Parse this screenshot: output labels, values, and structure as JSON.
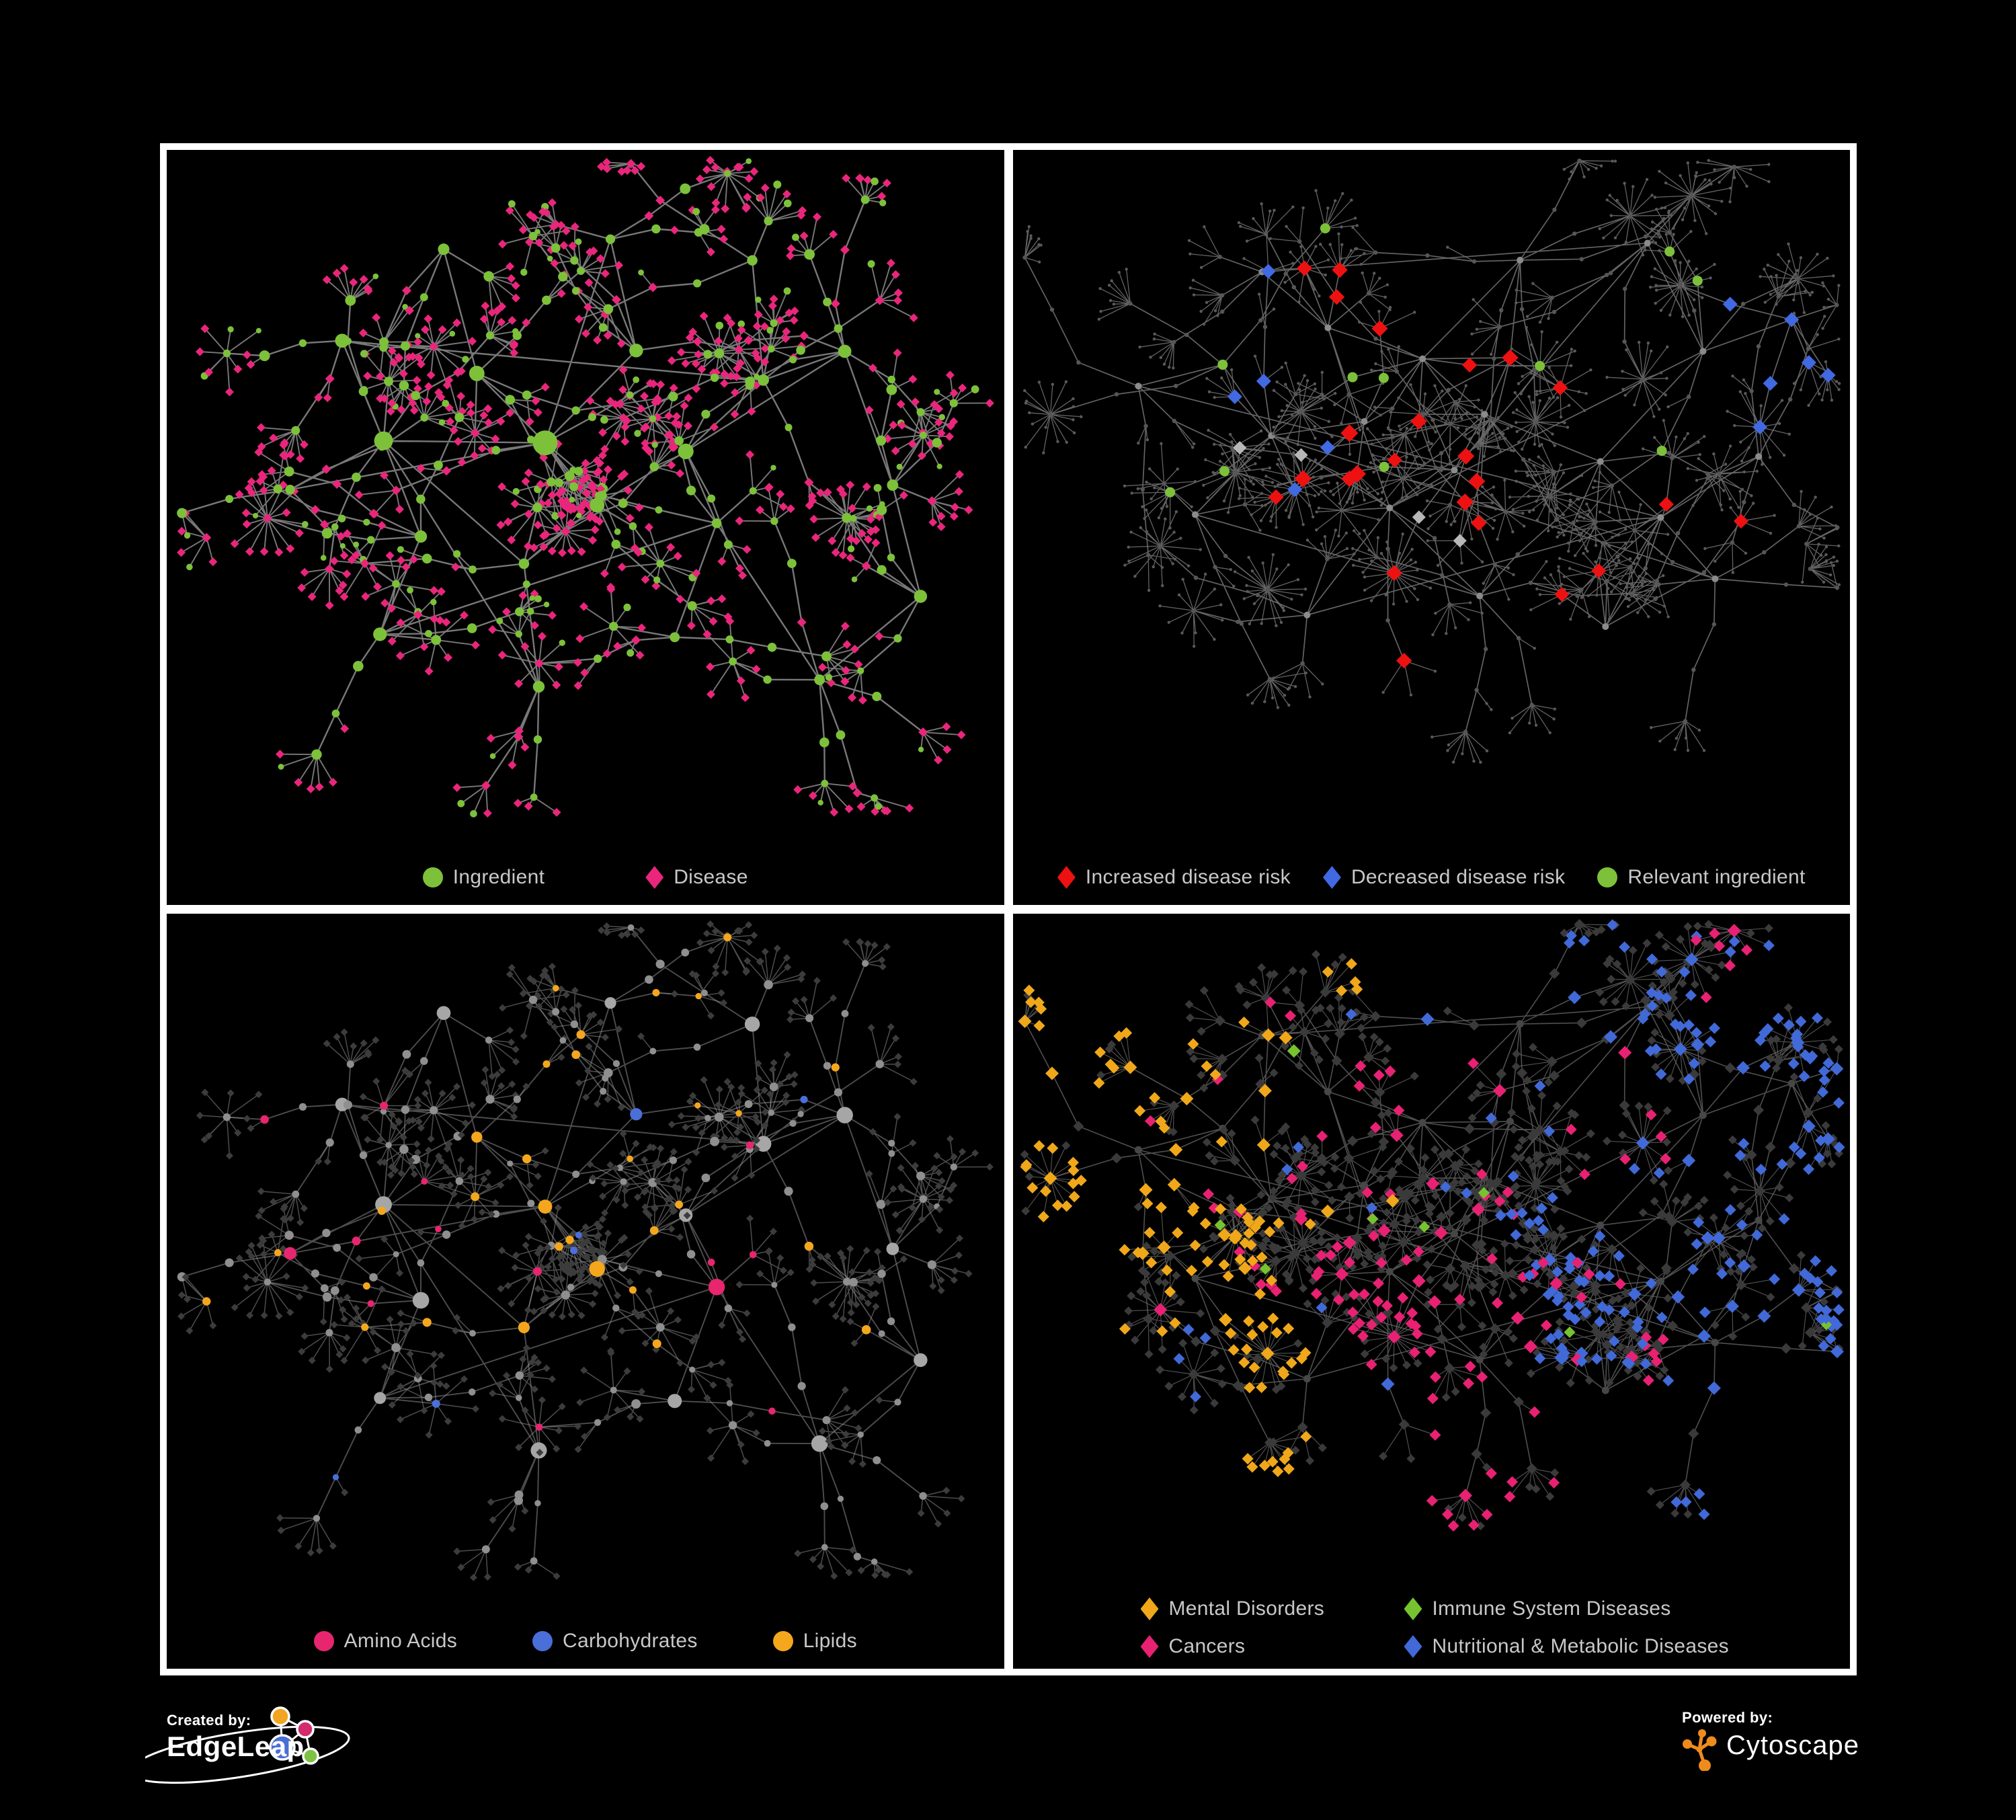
{
  "figure": {
    "background": "#000000",
    "frame_color": "#ffffff",
    "legend_text_color": "#c8c8c8"
  },
  "panels": [
    {
      "id": "ingredient-disease",
      "position": "top-left",
      "legend": [
        {
          "label": "Ingredient",
          "shape": "circle",
          "color": "#7dc13a"
        },
        {
          "label": "Disease",
          "shape": "diamond",
          "color": "#e9267b"
        }
      ],
      "network": {
        "type": "network",
        "layout": "A",
        "seed": 11,
        "color_seed": 101
      },
      "palette": {
        "ingredient": "#7dc13a",
        "disease": "#e9267b",
        "edge": "#7e7e7e"
      }
    },
    {
      "id": "disease-risk",
      "position": "top-right",
      "legend": [
        {
          "label": "Increased disease risk",
          "shape": "diamond",
          "color": "#ee1111"
        },
        {
          "label": "Decreased disease risk",
          "shape": "diamond",
          "color": "#4169e1"
        },
        {
          "label": "Relevant ingredient",
          "shape": "circle",
          "color": "#7dc13a"
        }
      ],
      "network": {
        "type": "network",
        "layout": "B",
        "seed": 47,
        "color_seed": 102
      },
      "palette": {
        "increased": "#ee1111",
        "decreased": "#4169e1",
        "relevant": "#7dc13a",
        "neutral": "#b8b8b8",
        "base": "#8b8b8b",
        "mid": "#565656",
        "leaf": "#5a5a5a",
        "edge": "#6e6e6e"
      }
    },
    {
      "id": "chemical-classes",
      "position": "bottom-left",
      "legend": [
        {
          "label": "Amino Acids",
          "shape": "circle",
          "color": "#e8256f"
        },
        {
          "label": "Carbohydrates",
          "shape": "circle",
          "color": "#4a6fd8"
        },
        {
          "label": "Lipids",
          "shape": "circle",
          "color": "#f4a71d"
        }
      ],
      "network": {
        "type": "network",
        "layout": "A",
        "seed": 11,
        "color_seed": 103
      },
      "palette": {
        "amino": "#e8256f",
        "carb": "#4a6fd8",
        "lipid": "#f4a71d",
        "node": "#8f8f8f",
        "hub": "#a6a6a6",
        "leaf": "#3c3c3c",
        "edge": "#9a9a9a"
      }
    },
    {
      "id": "disease-categories",
      "position": "bottom-right",
      "legend": [
        {
          "label": "Mental Disorders",
          "shape": "diamond",
          "color": "#f0a81a"
        },
        {
          "label": "Immune System Diseases",
          "shape": "diamond",
          "color": "#76c32f"
        },
        {
          "label": "Cancers",
          "shape": "diamond",
          "color": "#e82173"
        },
        {
          "label": "Nutritional & Metabolic Diseases",
          "shape": "diamond",
          "color": "#4169d8"
        }
      ],
      "network": {
        "type": "network",
        "layout": "B",
        "seed": 47,
        "color_seed": 104
      },
      "palette": {
        "mental": "#f0a81a",
        "immune": "#76c32f",
        "cancer": "#e82173",
        "metabolic": "#4169d8",
        "base": "#3a3a3a",
        "hub": "#474747",
        "edge": "#636363"
      }
    }
  ],
  "footer": {
    "created_by_label": "Created by:",
    "created_by_brand": "EdgeLeap",
    "powered_by_label": "Powered by:",
    "powered_by_brand": "Cytoscape",
    "edgeleap_logo_colors": {
      "orange": "#f2a51f",
      "pink": "#d42a6e",
      "blue": "#4a6fd4",
      "green": "#7dc242",
      "outline": "#ffffff"
    },
    "cytoscape_logo_color": "#ef8b1d"
  }
}
